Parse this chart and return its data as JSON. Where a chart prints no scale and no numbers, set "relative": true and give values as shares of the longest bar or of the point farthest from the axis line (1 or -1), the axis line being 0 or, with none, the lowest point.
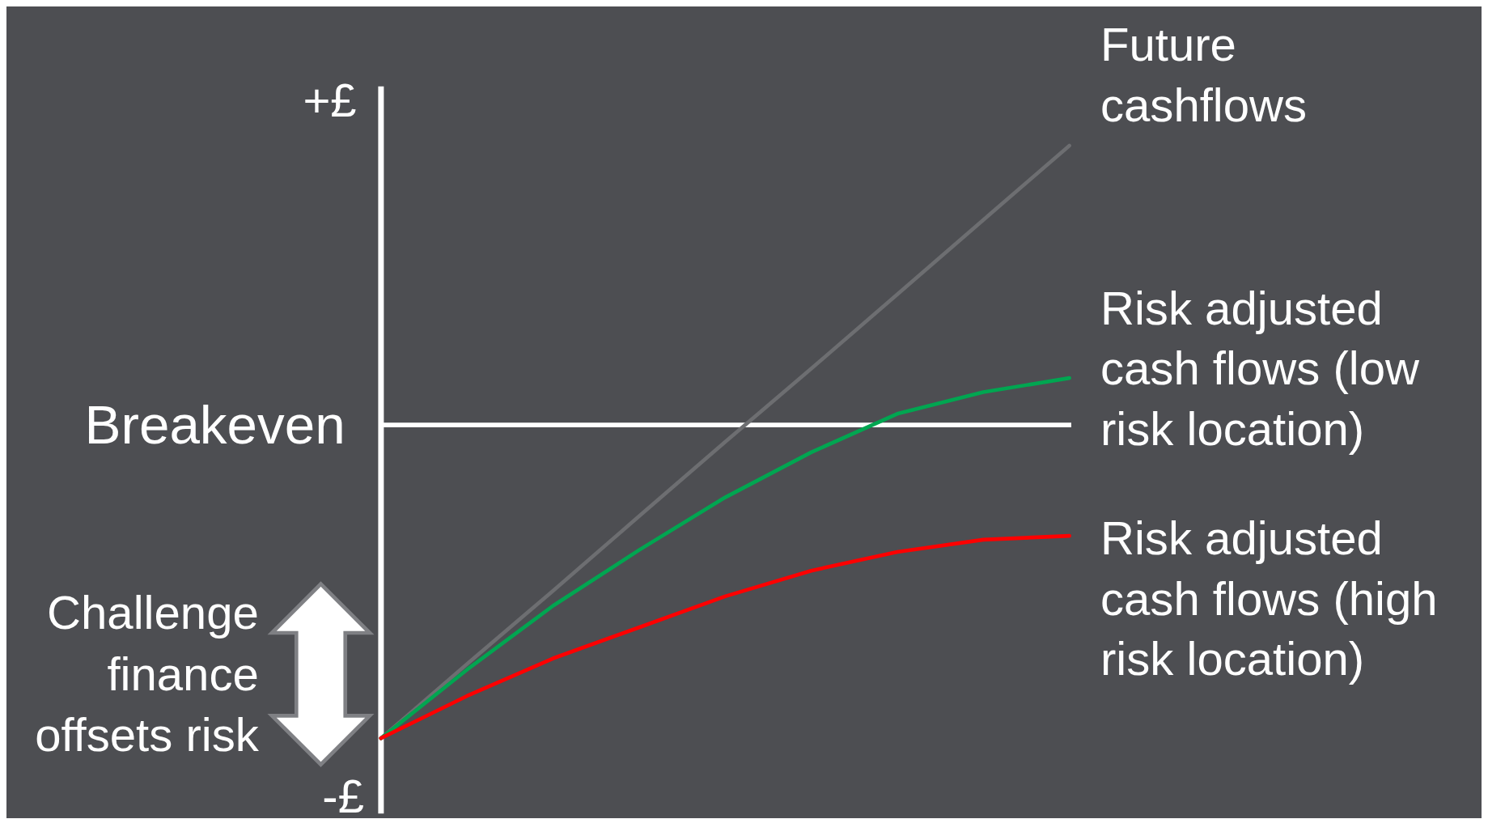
{
  "chart_data": {
    "type": "line",
    "relative": true,
    "categories": [
      null,
      null,
      null,
      null,
      null,
      null,
      null,
      null,
      null
    ],
    "series": [
      {
        "name": "Future cashflows",
        "color": "#6d6e71",
        "values": [
          -1,
          -0.763,
          -0.529,
          -0.291,
          -0.054,
          0.18,
          0.417,
          0.655,
          0.892
        ]
      },
      {
        "name": "Risk adjusted cash flows (low risk location)",
        "color": "#00a651",
        "values": [
          -1,
          -0.781,
          -0.577,
          -0.399,
          -0.231,
          -0.087,
          0.036,
          0.105,
          0.15
        ]
      },
      {
        "name": "Risk adjusted cash flows (high risk location)",
        "color": "#ff0000",
        "values": [
          -1,
          -0.865,
          -0.745,
          -0.646,
          -0.547,
          -0.465,
          -0.405,
          -0.366,
          -0.354
        ]
      }
    ],
    "ref_lines": [
      {
        "axis": "y",
        "value": 0,
        "label": "Breakeven",
        "color": "#ffffff"
      }
    ],
    "annotations": [
      "+£",
      "-£",
      "Challenge finance offsets risk"
    ],
    "marker": "none",
    "line_style": "solid"
  }
}
